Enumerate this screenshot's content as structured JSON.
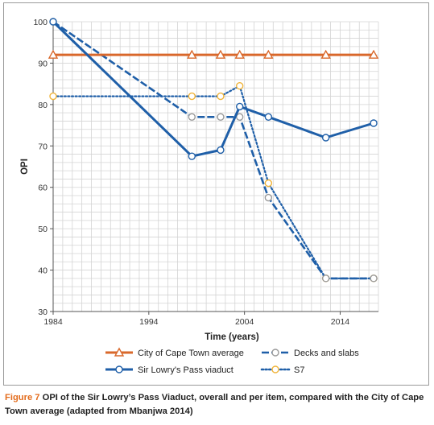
{
  "chart_data": {
    "type": "line",
    "title": "",
    "xlabel": "Time (years)",
    "ylabel": "OPI",
    "xlim": [
      1984,
      2018
    ],
    "ylim": [
      30,
      100
    ],
    "x_ticks": [
      1984,
      1994,
      2004,
      2014
    ],
    "y_ticks": [
      30,
      40,
      50,
      60,
      70,
      80,
      90,
      100
    ],
    "grid": true,
    "legend_position": "bottom",
    "series": [
      {
        "name": "City of Cape Town average",
        "color": "#d9682b",
        "style": "solid",
        "marker": "triangle",
        "x": [
          1984,
          1998.5,
          2001.5,
          2003.5,
          2006.5,
          2012.5,
          2017.5
        ],
        "y": [
          92,
          92,
          92,
          92,
          92,
          92,
          92
        ]
      },
      {
        "name": "Sir Lowry's Pass viaduct",
        "color": "#1f5fa8",
        "style": "solid",
        "marker": "circle",
        "x": [
          1984,
          1998.5,
          2001.5,
          2003.5,
          2006.5,
          2012.5,
          2017.5
        ],
        "y": [
          100,
          67.5,
          69,
          79.5,
          77,
          72,
          75.5
        ]
      },
      {
        "name": "Decks and slabs",
        "color": "#1f5fa8",
        "style": "dashed",
        "marker": "circle-gray",
        "x": [
          1984,
          1998.5,
          2001.5,
          2003.5,
          2006.5,
          2012.5,
          2017.5
        ],
        "y": [
          100,
          77,
          77,
          77,
          57.5,
          38,
          38
        ]
      },
      {
        "name": "S7",
        "color": "#1f5fa8",
        "style": "dotted",
        "marker": "circle-yellow",
        "x": [
          1984,
          1998.5,
          2001.5,
          2003.5,
          2006.5,
          2012.5,
          2017.5
        ],
        "y": [
          82,
          82,
          82,
          84.5,
          61,
          38,
          38
        ]
      }
    ]
  },
  "caption": {
    "label": "Figure 7",
    "text": "OPI of the Sir Lowry’s Pass Viaduct, overall and per item, compared with the City of Cape Town average (adapted from Mbanjwa 2014)"
  }
}
